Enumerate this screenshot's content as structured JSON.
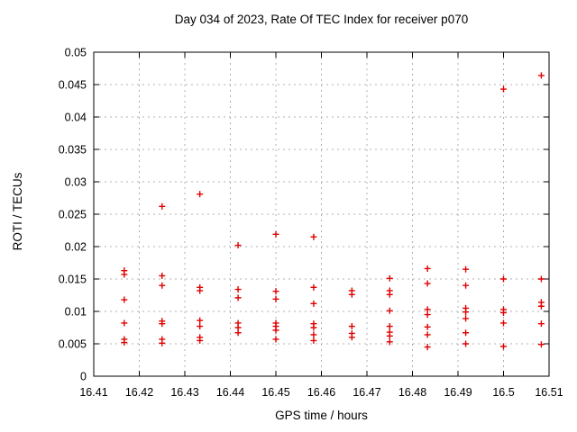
{
  "window": {
    "background": "#ffffff"
  },
  "chart_data": {
    "type": "scatter",
    "title": "Day 034 of 2023, Rate Of TEC Index for receiver p070",
    "xlabel": "GPS time / hours",
    "ylabel": "ROTI / TECUs",
    "xlim": [
      16.41,
      16.51
    ],
    "ylim": [
      0,
      0.05
    ],
    "xticks": [
      16.41,
      16.42,
      16.43,
      16.44,
      16.45,
      16.46,
      16.47,
      16.48,
      16.49,
      16.5,
      16.51
    ],
    "xtick_labels": [
      "16.41",
      "16.42",
      "16.43",
      "16.44",
      "16.45",
      "16.46",
      "16.47",
      "16.48",
      "16.49",
      "16.5",
      "16.51"
    ],
    "yticks": [
      0,
      0.005,
      0.01,
      0.015,
      0.02,
      0.025,
      0.03,
      0.035,
      0.04,
      0.045,
      0.05
    ],
    "ytick_labels": [
      "0",
      "0.005",
      "0.01",
      "0.015",
      "0.02",
      "0.025",
      "0.03",
      "0.035",
      "0.04",
      "0.045",
      "0.05"
    ],
    "grid": true,
    "legend": "none",
    "marker": "plus",
    "marker_color": "#e00000",
    "grid_color": "#b0b0b0",
    "axis_color": "#000000",
    "series": [
      {
        "name": "ROTI",
        "points": [
          [
            16.4167,
            0.0163
          ],
          [
            16.4167,
            0.0157
          ],
          [
            16.4167,
            0.0118
          ],
          [
            16.4167,
            0.0082
          ],
          [
            16.4167,
            0.0057
          ],
          [
            16.4167,
            0.0052
          ],
          [
            16.425,
            0.0262
          ],
          [
            16.425,
            0.0155
          ],
          [
            16.425,
            0.014
          ],
          [
            16.425,
            0.0085
          ],
          [
            16.425,
            0.0081
          ],
          [
            16.425,
            0.0057
          ],
          [
            16.425,
            0.0051
          ],
          [
            16.4333,
            0.0281
          ],
          [
            16.4333,
            0.0137
          ],
          [
            16.4333,
            0.0132
          ],
          [
            16.4333,
            0.0086
          ],
          [
            16.4333,
            0.0077
          ],
          [
            16.4333,
            0.006
          ],
          [
            16.4333,
            0.0055
          ],
          [
            16.4417,
            0.0202
          ],
          [
            16.4417,
            0.0134
          ],
          [
            16.4417,
            0.0121
          ],
          [
            16.4417,
            0.0082
          ],
          [
            16.4417,
            0.0075
          ],
          [
            16.4417,
            0.0067
          ],
          [
            16.45,
            0.0219
          ],
          [
            16.45,
            0.0131
          ],
          [
            16.45,
            0.0119
          ],
          [
            16.45,
            0.0082
          ],
          [
            16.45,
            0.0077
          ],
          [
            16.45,
            0.0071
          ],
          [
            16.45,
            0.0057
          ],
          [
            16.4583,
            0.0215
          ],
          [
            16.4583,
            0.0137
          ],
          [
            16.4583,
            0.0112
          ],
          [
            16.4583,
            0.0081
          ],
          [
            16.4583,
            0.0075
          ],
          [
            16.4583,
            0.0064
          ],
          [
            16.4583,
            0.0055
          ],
          [
            16.4667,
            0.0132
          ],
          [
            16.4667,
            0.0126
          ],
          [
            16.4667,
            0.0077
          ],
          [
            16.4667,
            0.0066
          ],
          [
            16.4667,
            0.006
          ],
          [
            16.475,
            0.0151
          ],
          [
            16.475,
            0.0132
          ],
          [
            16.475,
            0.0126
          ],
          [
            16.475,
            0.0101
          ],
          [
            16.475,
            0.0077
          ],
          [
            16.475,
            0.0068
          ],
          [
            16.475,
            0.0062
          ],
          [
            16.475,
            0.0053
          ],
          [
            16.4833,
            0.0166
          ],
          [
            16.4833,
            0.0143
          ],
          [
            16.4833,
            0.0103
          ],
          [
            16.4833,
            0.0095
          ],
          [
            16.4833,
            0.0076
          ],
          [
            16.4833,
            0.0064
          ],
          [
            16.4833,
            0.0045
          ],
          [
            16.4917,
            0.0165
          ],
          [
            16.4917,
            0.014
          ],
          [
            16.4917,
            0.0105
          ],
          [
            16.4917,
            0.0099
          ],
          [
            16.4917,
            0.0089
          ],
          [
            16.4917,
            0.0067
          ],
          [
            16.4917,
            0.005
          ],
          [
            16.5,
            0.0443
          ],
          [
            16.5,
            0.015
          ],
          [
            16.5,
            0.0103
          ],
          [
            16.5,
            0.0098
          ],
          [
            16.5,
            0.0082
          ],
          [
            16.5,
            0.0046
          ],
          [
            16.5083,
            0.0464
          ],
          [
            16.5083,
            0.015
          ],
          [
            16.5083,
            0.0114
          ],
          [
            16.5083,
            0.0108
          ],
          [
            16.5083,
            0.0081
          ],
          [
            16.5083,
            0.0049
          ]
        ]
      }
    ]
  }
}
